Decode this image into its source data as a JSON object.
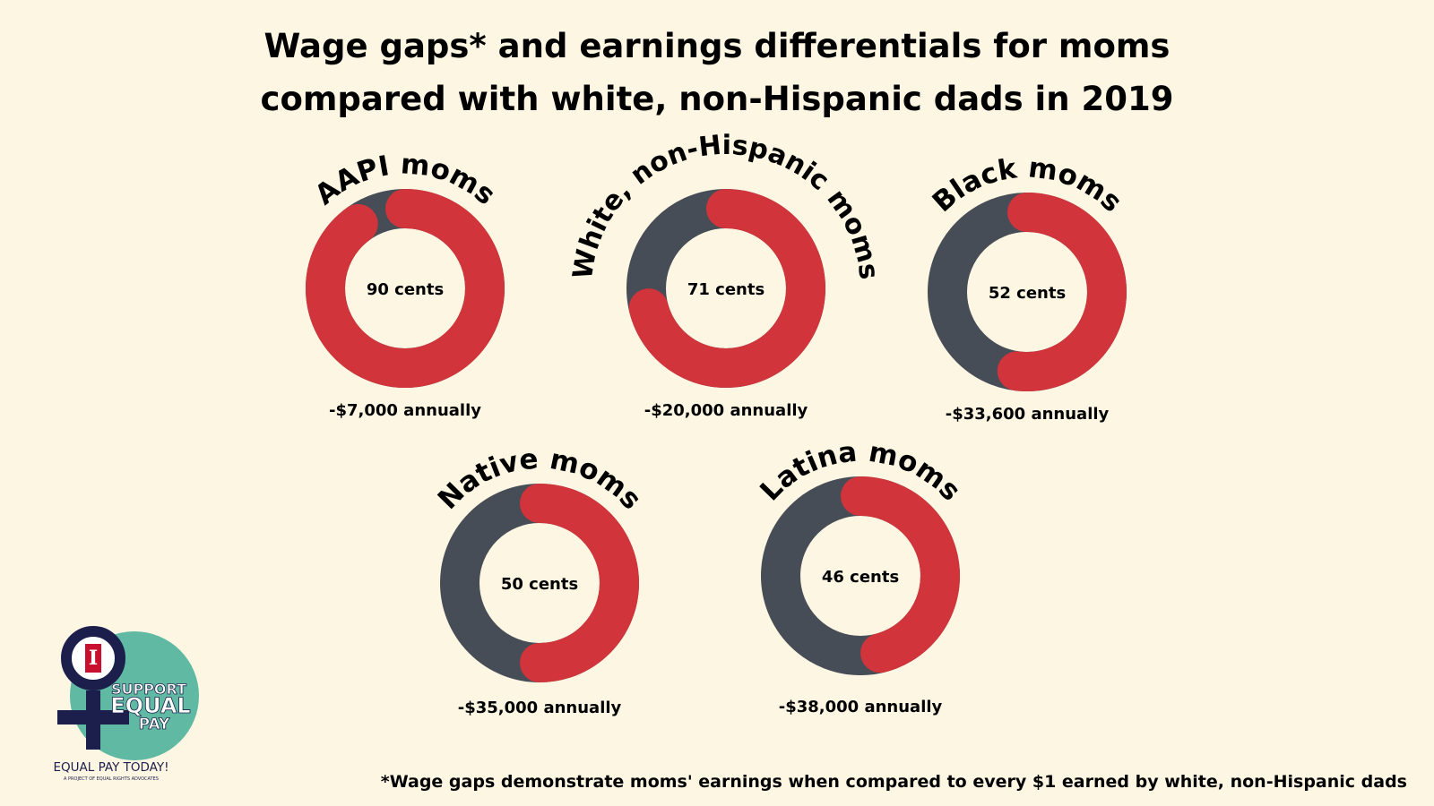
{
  "title": {
    "line1": "Wage gaps* and earnings differentials for moms",
    "line2": "compared with white, non-Hispanic dads in 2019"
  },
  "footnote": "*Wage gaps demonstrate moms' earnings when compared to every $1 earned by white, non-Hispanic dads",
  "logo": {
    "mark": "I",
    "lines": [
      "SUPPORT",
      "EQUAL",
      "PAY"
    ],
    "caption": "EQUAL PAY TODAY!",
    "subcaption": "A PROJECT OF EQUAL RIGHTS ADVOCATES"
  },
  "colors": {
    "background": "#fdf6e3",
    "earned": "#d1343a",
    "gap": "#474d56",
    "logo_bg": "#5fb9a3",
    "logo_dark": "#1c1f4b"
  },
  "chart_data": {
    "type": "pie",
    "subtype": "donut",
    "unit": "cents per $1",
    "total": 100,
    "series": [
      {
        "name": "AAPI moms",
        "value": 90,
        "center_label": "90 cents",
        "annual_label": "-$7,000 annually"
      },
      {
        "name": "White, non-Hispanic moms",
        "value": 71,
        "center_label": "71 cents",
        "annual_label": "-$20,000 annually"
      },
      {
        "name": "Black moms",
        "value": 52,
        "center_label": "52 cents",
        "annual_label": "-$33,600 annually"
      },
      {
        "name": "Native moms",
        "value": 50,
        "center_label": "50 cents",
        "annual_label": "-$35,000 annually"
      },
      {
        "name": "Latina moms",
        "value": 46,
        "center_label": "46 cents",
        "annual_label": "-$38,000 annually"
      }
    ]
  }
}
